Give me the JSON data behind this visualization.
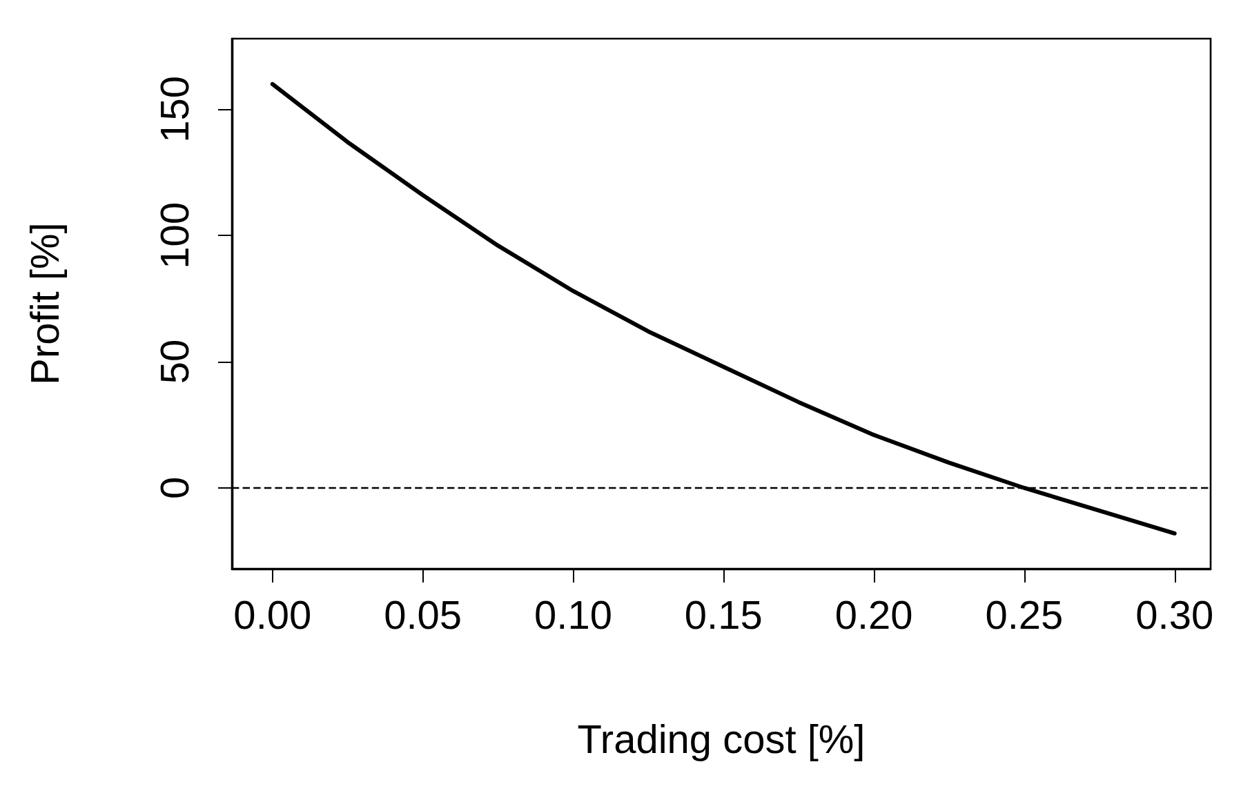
{
  "chart_data": {
    "type": "line",
    "xlabel": "Trading cost [%]",
    "ylabel": "Profit [%]",
    "series": [
      {
        "color": "#000000",
        "x": [
          0,
          0.025,
          0.05,
          0.075,
          0.1,
          0.125,
          0.15,
          0.175,
          0.2,
          0.225,
          0.25,
          0.275,
          0.3
        ],
        "values": [
          160,
          137,
          116,
          96,
          78,
          62,
          48,
          34,
          21,
          10,
          0,
          -9,
          -18
        ]
      }
    ],
    "xlim": [
      -0.0135,
      0.312
    ],
    "ylim": [
      -32,
      178
    ],
    "xticks": [
      {
        "value": 0,
        "label": "0.00"
      },
      {
        "value": 0.05,
        "label": "0.05"
      },
      {
        "value": 0.1,
        "label": "0.10"
      },
      {
        "value": 0.15,
        "label": "0.15"
      },
      {
        "value": 0.2,
        "label": "0.20"
      },
      {
        "value": 0.25,
        "label": "0.25"
      },
      {
        "value": 0.3,
        "label": "0.30"
      }
    ],
    "yticks": [
      0,
      50,
      100,
      150
    ],
    "ref_lines": [
      {
        "axis": "y",
        "value": 0,
        "line_style": "dashed",
        "color": "#000000"
      }
    ],
    "line_style": "solid"
  }
}
